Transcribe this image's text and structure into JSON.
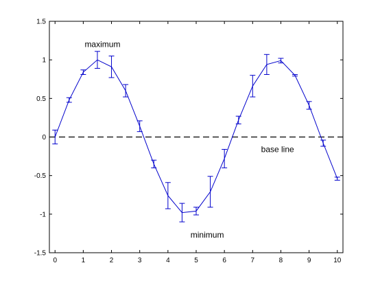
{
  "chart_data": {
    "type": "line",
    "title": "",
    "xlabel": "",
    "ylabel": "",
    "xlim": [
      -0.2,
      10.2
    ],
    "ylim": [
      -1.5,
      1.5
    ],
    "grid": false,
    "xticks": [
      0,
      1,
      2,
      3,
      4,
      5,
      6,
      7,
      8,
      9,
      10
    ],
    "yticks": [
      -1.5,
      -1,
      -0.5,
      0,
      0.5,
      1,
      1.5
    ],
    "xtick_labels": [
      "0",
      "1",
      "2",
      "3",
      "4",
      "5",
      "6",
      "7",
      "8",
      "9",
      "10"
    ],
    "ytick_labels": [
      "-1.5",
      "-1",
      "-0.5",
      "0",
      "0.5",
      "1",
      "1.5"
    ],
    "series": [
      {
        "color": "#0000cc",
        "x": [
          0,
          0.5,
          1,
          1.5,
          2,
          2.5,
          3,
          3.5,
          4,
          4.5,
          5,
          5.5,
          6,
          6.5,
          7,
          7.5,
          8,
          8.5,
          9,
          9.5,
          10
        ],
        "y": [
          0,
          0.48,
          0.84,
          1.0,
          0.91,
          0.6,
          0.14,
          -0.35,
          -0.76,
          -0.98,
          -0.96,
          -0.71,
          -0.28,
          0.22,
          0.66,
          0.94,
          0.99,
          0.8,
          0.41,
          -0.08,
          -0.54
        ],
        "error": [
          0.09,
          0.03,
          0.03,
          0.11,
          0.14,
          0.08,
          0.07,
          0.05,
          0.17,
          0.12,
          0.05,
          0.2,
          0.12,
          0.05,
          0.14,
          0.13,
          0.03,
          0.01,
          0.05,
          0.04,
          0.02
        ]
      }
    ],
    "reference_line": {
      "y": 0,
      "style": "dashed",
      "color": "#000000"
    },
    "annotations": [
      {
        "text": "maximum",
        "x": 1.05,
        "y": 1.2
      },
      {
        "text": "minimum",
        "x": 4.8,
        "y": -1.27
      },
      {
        "text": "base line",
        "x": 7.3,
        "y": -0.16
      }
    ]
  }
}
